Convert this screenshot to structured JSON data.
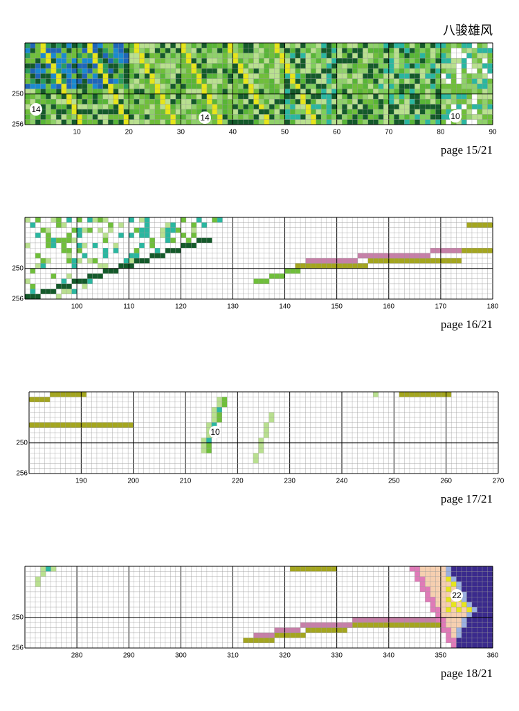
{
  "header": {
    "title": "八骏雄风"
  },
  "panels": [
    {
      "page": "page 15/21",
      "row_labels": [
        "250",
        "256"
      ],
      "col_labels": [
        "10",
        "20",
        "30",
        "40",
        "50",
        "60",
        "70",
        "80",
        "90"
      ],
      "symbols": [
        "14",
        "14",
        "10"
      ]
    },
    {
      "page": "page 16/21",
      "row_labels": [
        "250",
        "256"
      ],
      "col_labels": [
        "100",
        "110",
        "120",
        "130",
        "140",
        "150",
        "160",
        "170",
        "180"
      ],
      "symbols": []
    },
    {
      "page": "page 17/21",
      "row_labels": [
        "250",
        "256"
      ],
      "col_labels": [
        "190",
        "200",
        "210",
        "220",
        "230",
        "240",
        "250",
        "260",
        "270"
      ],
      "symbols": [
        "10"
      ]
    },
    {
      "page": "page 18/21",
      "row_labels": [
        "250",
        "256"
      ],
      "col_labels": [
        "280",
        "290",
        "300",
        "310",
        "320",
        "330",
        "340",
        "350",
        "360"
      ],
      "symbols": [
        "22"
      ]
    }
  ]
}
